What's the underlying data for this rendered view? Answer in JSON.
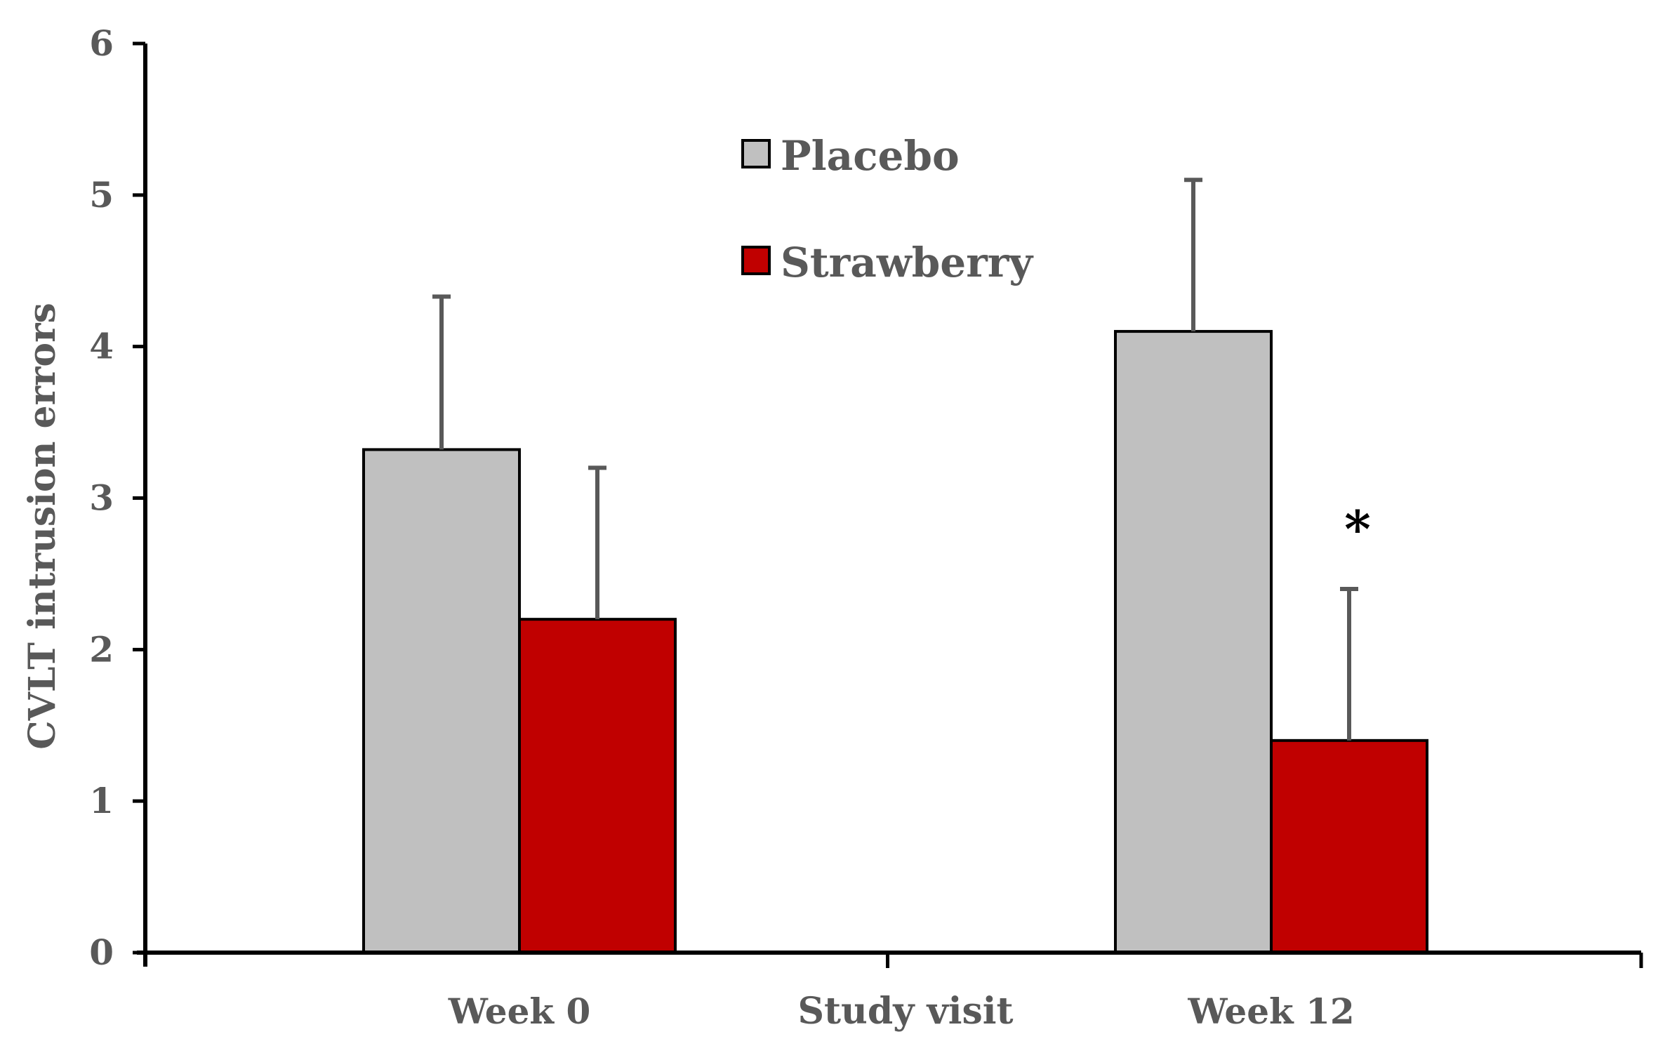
{
  "chart_data": {
    "type": "bar",
    "title": "",
    "xlabel": "Study visit",
    "ylabel": "CVLT intrusion errors",
    "ylim": [
      0,
      6
    ],
    "yticks": [
      "0",
      "1",
      "2",
      "3",
      "4",
      "5",
      "6"
    ],
    "categories": [
      "Week 0",
      "Week 12"
    ],
    "series": [
      {
        "name": "Placebo",
        "color": "#c0c0c0",
        "values": [
          3.32,
          4.1
        ],
        "error": [
          1.01,
          1.0
        ]
      },
      {
        "name": "Strawberry",
        "color": "#c00000",
        "values": [
          2.2,
          1.4
        ],
        "error": [
          1.0,
          1.0
        ]
      }
    ],
    "grid": false,
    "legend_position": "top-center",
    "annotations": [
      {
        "text": "*",
        "category": "Week 12",
        "series": "Strawberry"
      }
    ]
  }
}
